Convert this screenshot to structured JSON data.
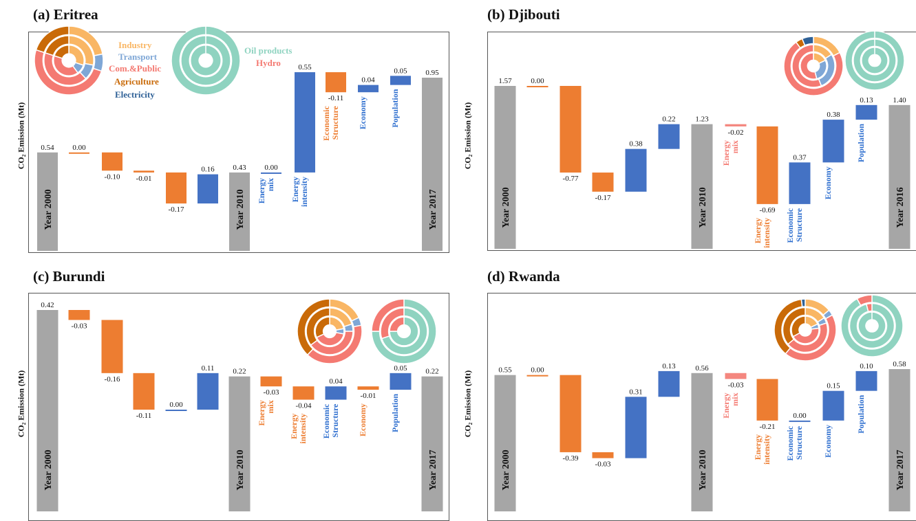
{
  "colors": {
    "year": "#a6a6a6",
    "orange": "#ed7d31",
    "blue": "#4472c4",
    "pink": "#f4877f",
    "industry": "#f9b664",
    "transport": "#7fa7d6",
    "compublic": "#f47a72",
    "agriculture": "#c96a08",
    "electricity": "#2f6197",
    "oil": "#8fd3c0",
    "hydro": "#f47a72"
  },
  "legend": {
    "sectors": [
      {
        "label": "Industry",
        "color": "#f9b664"
      },
      {
        "label": "Transport",
        "color": "#7fa7d6"
      },
      {
        "label": "Com.&Public",
        "color": "#f47a72"
      },
      {
        "label": "Agriculture",
        "color": "#c96a08"
      },
      {
        "label": "Electricity",
        "color": "#2f6197"
      }
    ],
    "fuels": [
      {
        "label": "Oil products",
        "color": "#8fd3c0"
      },
      {
        "label": "Hydro",
        "color": "#f47a72"
      }
    ]
  },
  "chart_data": [
    {
      "type": "bar",
      "title": "(a) Eritrea",
      "ylabel": "CO₂ Emission (Mt)",
      "ymin": -0.5,
      "ymax": 1.2,
      "bars": [
        {
          "label": "Year 2000",
          "kind": "year",
          "value": 0.54,
          "display": "0.54"
        },
        {
          "label": "",
          "kind": "orange",
          "delta": 0.0,
          "display": "0.00"
        },
        {
          "label": "",
          "kind": "orange",
          "delta": -0.1,
          "display": "-0.10"
        },
        {
          "label": "",
          "kind": "orange",
          "delta": -0.01,
          "display": "-0.01"
        },
        {
          "label": "",
          "kind": "orange",
          "delta": -0.17,
          "display": "-0.17"
        },
        {
          "label": "",
          "kind": "blue",
          "delta": 0.16,
          "display": "0.16"
        },
        {
          "label": "Year 2010",
          "kind": "year",
          "value": 0.43,
          "display": "0.43"
        },
        {
          "label": "Energy mix",
          "kind": "blue",
          "delta": 0.0,
          "display": "0.00"
        },
        {
          "label": "Energy intensity",
          "kind": "blue",
          "delta": 0.55,
          "display": "0.55"
        },
        {
          "label": "Economic Structure",
          "kind": "orange",
          "delta": -0.11,
          "display": "-0.11"
        },
        {
          "label": "Economy",
          "kind": "blue",
          "delta": 0.04,
          "display": "0.04"
        },
        {
          "label": "Population",
          "kind": "blue",
          "delta": 0.05,
          "display": "0.05"
        },
        {
          "label": "Year 2017",
          "kind": "year",
          "value": 0.95,
          "display": "0.95"
        }
      ]
    },
    {
      "type": "bar",
      "title": "(b) Djibouti",
      "ylabel": "CO₂ Emission (Mt)",
      "ymin": -0.2,
      "ymax": 2.2,
      "bars": [
        {
          "label": "Year 2000",
          "kind": "year",
          "value": 1.57,
          "display": "1.57"
        },
        {
          "label": "",
          "kind": "orange",
          "delta": 0.0,
          "display": "0.00"
        },
        {
          "label": "",
          "kind": "orange",
          "delta": -0.77,
          "display": "-0.77"
        },
        {
          "label": "",
          "kind": "orange",
          "delta": -0.17,
          "display": "-0.17"
        },
        {
          "label": "",
          "kind": "blue",
          "delta": 0.38,
          "display": "0.38"
        },
        {
          "label": "",
          "kind": "blue",
          "delta": 0.22,
          "display": "0.22"
        },
        {
          "label": "Year 2010",
          "kind": "year",
          "value": 1.23,
          "display": "1.23"
        },
        {
          "label": "Energy mix",
          "kind": "pink",
          "delta": -0.02,
          "display": "-0.02"
        },
        {
          "label": "Energy intensity",
          "kind": "orange",
          "delta": -0.69,
          "display": "-0.69"
        },
        {
          "label": "Economic Structure",
          "kind": "blue",
          "delta": 0.37,
          "display": "0.37"
        },
        {
          "label": "Economy",
          "kind": "blue",
          "delta": 0.38,
          "display": "0.38"
        },
        {
          "label": "Population",
          "kind": "blue",
          "delta": 0.13,
          "display": "0.13"
        },
        {
          "label": "Year 2016",
          "kind": "year",
          "value": 1.4,
          "display": "1.40"
        }
      ]
    },
    {
      "type": "bar",
      "title": "(c) Burundi",
      "ylabel": "CO₂ Emission (Mt)",
      "ymin": -0.2,
      "ymax": 0.44,
      "bars": [
        {
          "label": "Year 2000",
          "kind": "year",
          "value": 0.42,
          "display": "0.42"
        },
        {
          "label": "",
          "kind": "orange",
          "delta": -0.03,
          "display": "-0.03"
        },
        {
          "label": "",
          "kind": "orange",
          "delta": -0.16,
          "display": "-0.16"
        },
        {
          "label": "",
          "kind": "orange",
          "delta": -0.11,
          "display": "-0.11"
        },
        {
          "label": "",
          "kind": "blue",
          "delta": 0.0,
          "display": "0.00"
        },
        {
          "label": "",
          "kind": "blue",
          "delta": 0.11,
          "display": "0.11"
        },
        {
          "label": "Year 2010",
          "kind": "year",
          "value": 0.22,
          "display": "0.22"
        },
        {
          "label": "Energy mix",
          "kind": "orange",
          "delta": -0.03,
          "display": "-0.03"
        },
        {
          "label": "Energy intensity",
          "kind": "orange",
          "delta": -0.04,
          "display": "-0.04"
        },
        {
          "label": "Economic Structure",
          "kind": "blue",
          "delta": 0.04,
          "display": "0.04"
        },
        {
          "label": "Economy",
          "kind": "orange",
          "delta": -0.01,
          "display": "-0.01"
        },
        {
          "label": "Population",
          "kind": "blue",
          "delta": 0.05,
          "display": "0.05"
        },
        {
          "label": "Year 2017",
          "kind": "year",
          "value": 0.22,
          "display": "0.22"
        }
      ]
    },
    {
      "type": "bar",
      "title": "(d) Rwanda",
      "ylabel": "CO₂ Emission (Mt)",
      "ymin": -0.2,
      "ymax": 0.8,
      "bars": [
        {
          "label": "Year 2000",
          "kind": "year",
          "value": 0.55,
          "display": "0.55"
        },
        {
          "label": "",
          "kind": "orange",
          "delta": 0.0,
          "display": "0.00"
        },
        {
          "label": "",
          "kind": "orange",
          "delta": -0.39,
          "display": "-0.39"
        },
        {
          "label": "",
          "kind": "orange",
          "delta": -0.03,
          "display": "-0.03"
        },
        {
          "label": "",
          "kind": "blue",
          "delta": 0.31,
          "display": "0.31"
        },
        {
          "label": "",
          "kind": "blue",
          "delta": 0.13,
          "display": "0.13"
        },
        {
          "label": "Year 2010",
          "kind": "year",
          "value": 0.56,
          "display": "0.56"
        },
        {
          "label": "Energy mix",
          "kind": "pink",
          "delta": -0.03,
          "display": "-0.03"
        },
        {
          "label": "Energy intensity",
          "kind": "orange",
          "delta": -0.21,
          "display": "-0.21"
        },
        {
          "label": "Economic Structure",
          "kind": "blue",
          "delta": 0.0,
          "display": "0.00"
        },
        {
          "label": "Economy",
          "kind": "blue",
          "delta": 0.15,
          "display": "0.15"
        },
        {
          "label": "Population",
          "kind": "blue",
          "delta": 0.1,
          "display": "0.10"
        },
        {
          "label": "Year 2017",
          "kind": "year",
          "value": 0.58,
          "display": "0.58"
        }
      ]
    }
  ]
}
